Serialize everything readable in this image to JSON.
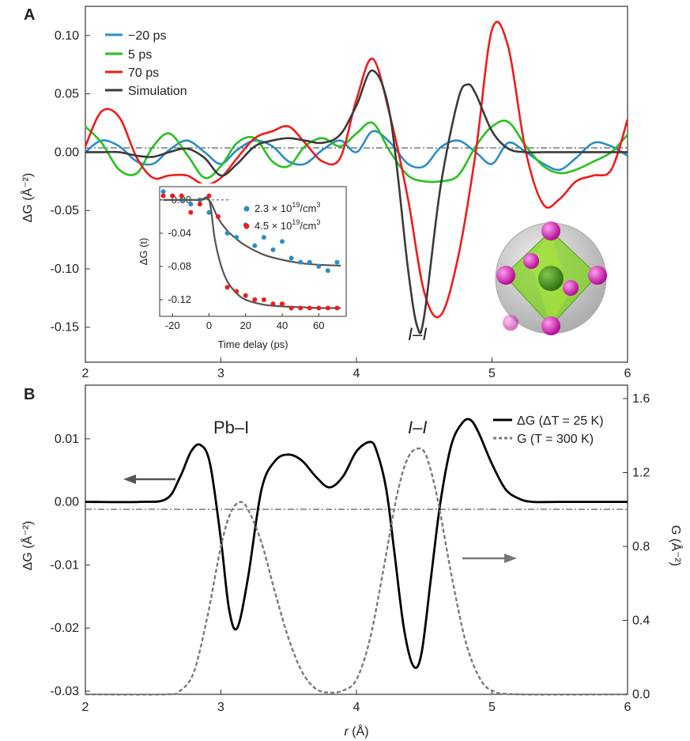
{
  "chart_data": [
    {
      "panel": "A",
      "type": "line",
      "xlabel": "",
      "ylabel": "ΔG (Å⁻²)",
      "xlim": [
        2,
        6
      ],
      "ylim": [
        -0.18,
        0.125
      ],
      "xticks": [
        2,
        3,
        4,
        5,
        6
      ],
      "yticks": [
        -0.15,
        -0.1,
        -0.05,
        0.0,
        0.05,
        0.1
      ],
      "ytick_labels": [
        "-0.15",
        "-0.10",
        "-0.05",
        "0.00",
        "0.05",
        "0.10"
      ],
      "legend_position": "top-left",
      "annotation": "I–I",
      "series": [
        {
          "name": "−20 ps",
          "color": "#2a8dc8",
          "x": [
            2.0,
            2.12,
            2.25,
            2.38,
            2.5,
            2.62,
            2.75,
            2.88,
            3.0,
            3.12,
            3.25,
            3.38,
            3.5,
            3.62,
            3.75,
            3.88,
            4.0,
            4.12,
            4.25,
            4.38,
            4.5,
            4.62,
            4.75,
            4.88,
            5.0,
            5.12,
            5.25,
            5.38,
            5.5,
            5.62,
            5.75,
            5.88,
            6.0
          ],
          "y": [
            0.0,
            0.01,
            0.005,
            -0.008,
            -0.01,
            0.002,
            0.01,
            0.0,
            -0.01,
            0.002,
            0.01,
            0.005,
            -0.008,
            -0.01,
            0.002,
            0.01,
            0.0,
            0.018,
            0.008,
            -0.01,
            -0.012,
            0.004,
            0.01,
            0.0,
            -0.01,
            0.008,
            0.0,
            -0.01,
            -0.015,
            -0.005,
            0.008,
            0.005,
            -0.003
          ]
        },
        {
          "name": "5 ps",
          "color": "#27c21f",
          "x": [
            2.0,
            2.12,
            2.25,
            2.38,
            2.5,
            2.62,
            2.75,
            2.88,
            3.0,
            3.12,
            3.25,
            3.38,
            3.5,
            3.62,
            3.75,
            3.88,
            4.0,
            4.12,
            4.25,
            4.38,
            4.5,
            4.62,
            4.75,
            4.88,
            5.0,
            5.12,
            5.25,
            5.38,
            5.5,
            5.62,
            5.75,
            5.88,
            6.0
          ],
          "y": [
            0.022,
            0.008,
            -0.015,
            -0.018,
            0.005,
            0.016,
            -0.002,
            -0.022,
            -0.012,
            0.008,
            0.012,
            -0.008,
            -0.012,
            0.005,
            0.012,
            0.005,
            0.016,
            0.025,
            0.0,
            -0.02,
            -0.025,
            -0.025,
            -0.02,
            0.005,
            0.022,
            0.026,
            0.005,
            -0.012,
            -0.018,
            -0.015,
            -0.008,
            0.0,
            0.015
          ]
        },
        {
          "name": "70 ps",
          "color": "#ee1c1c",
          "x": [
            2.0,
            2.12,
            2.25,
            2.38,
            2.5,
            2.62,
            2.75,
            2.88,
            3.0,
            3.12,
            3.25,
            3.38,
            3.5,
            3.62,
            3.75,
            3.88,
            4.0,
            4.12,
            4.25,
            4.38,
            4.5,
            4.62,
            4.75,
            4.88,
            5.0,
            5.12,
            5.25,
            5.38,
            5.5,
            5.62,
            5.75,
            5.88,
            6.0
          ],
          "y": [
            0.005,
            0.035,
            0.03,
            -0.005,
            -0.022,
            -0.02,
            -0.02,
            -0.028,
            -0.022,
            -0.005,
            0.012,
            0.018,
            0.022,
            0.008,
            -0.008,
            -0.005,
            0.045,
            0.08,
            0.03,
            -0.04,
            -0.12,
            -0.14,
            -0.09,
            0.0,
            0.105,
            0.09,
            0.0,
            -0.045,
            -0.04,
            -0.025,
            -0.02,
            -0.015,
            0.028
          ]
        },
        {
          "name": "Simulation",
          "color": "#3a3a3a",
          "x": [
            2.0,
            2.12,
            2.25,
            2.38,
            2.5,
            2.62,
            2.75,
            2.88,
            3.0,
            3.12,
            3.25,
            3.38,
            3.5,
            3.62,
            3.75,
            3.88,
            4.0,
            4.12,
            4.25,
            4.38,
            4.45,
            4.5,
            4.62,
            4.75,
            4.82,
            4.88,
            5.0,
            5.12,
            5.25,
            5.38,
            5.5,
            5.62,
            5.75,
            5.88,
            6.0
          ],
          "y": [
            0.0,
            0.0,
            0.0,
            -0.003,
            -0.004,
            0.0,
            0.003,
            -0.005,
            -0.02,
            -0.01,
            0.005,
            0.01,
            0.012,
            0.01,
            0.008,
            0.015,
            0.04,
            0.07,
            0.03,
            -0.1,
            -0.15,
            -0.14,
            -0.03,
            0.045,
            0.058,
            0.05,
            0.018,
            0.003,
            0.0,
            0.0,
            0.0,
            0.0,
            0.0,
            0.0,
            0.0
          ]
        }
      ],
      "inset": {
        "type": "scatter",
        "xlabel": "Time delay (ps)",
        "ylabel": "ΔG (t)",
        "xlim": [
          -27,
          75
        ],
        "ylim": [
          -0.14,
          0.016
        ],
        "xticks": [
          -20,
          0,
          20,
          40,
          60
        ],
        "yticks": [
          0.0,
          -0.04,
          -0.08,
          -0.12
        ],
        "ytick_labels": [
          "0.00",
          "-0.04",
          "-0.08",
          "-0.12"
        ],
        "series": [
          {
            "name_base": "2.3 × 10",
            "name_exp": "19",
            "name_unit": "/cm",
            "name_sup": "3",
            "color": "#2a8dc8",
            "x": [
              -25,
              -20,
              -15,
              -10,
              -5,
              0,
              5,
              10,
              15,
              20,
              25,
              30,
              35,
              40,
              45,
              50,
              55,
              60,
              65,
              70
            ],
            "y": [
              0.01,
              0.005,
              0.0,
              -0.005,
              0.0,
              -0.015,
              -0.02,
              -0.04,
              -0.045,
              -0.03,
              -0.055,
              -0.045,
              -0.06,
              -0.05,
              -0.07,
              -0.075,
              -0.075,
              -0.08,
              -0.085,
              -0.075
            ],
            "fit_x": [
              -25,
              -15,
              -5,
              0,
              5,
              10,
              15,
              20,
              30,
              40,
              50,
              60,
              72
            ],
            "fit_y": [
              0.0,
              0.0,
              0.0,
              0.0,
              -0.022,
              -0.037,
              -0.047,
              -0.055,
              -0.066,
              -0.072,
              -0.076,
              -0.078,
              -0.079
            ]
          },
          {
            "name_base": "4.5 × 10",
            "name_exp": "19",
            "name_unit": "/cm",
            "name_sup": "3",
            "color": "#ee1c1c",
            "x": [
              -25,
              -20,
              -15,
              -10,
              -5,
              0,
              5,
              10,
              15,
              20,
              25,
              30,
              35,
              40,
              45,
              50,
              55,
              60,
              65,
              70
            ],
            "y": [
              0.005,
              0.005,
              0.005,
              -0.015,
              -0.005,
              0.005,
              -0.02,
              -0.105,
              -0.11,
              -0.115,
              -0.12,
              -0.12,
              -0.125,
              -0.125,
              -0.13,
              -0.13,
              -0.13,
              -0.13,
              -0.13,
              -0.13
            ],
            "fit_x": [
              -25,
              -15,
              -5,
              0,
              3,
              6,
              10,
              15,
              20,
              30,
              40,
              50,
              60,
              72
            ],
            "fit_y": [
              0.0,
              0.0,
              0.0,
              0.0,
              -0.045,
              -0.075,
              -0.098,
              -0.112,
              -0.12,
              -0.126,
              -0.128,
              -0.129,
              -0.13,
              -0.13
            ]
          }
        ]
      }
    },
    {
      "panel": "B",
      "type": "line",
      "xlabel_var": "r",
      "xlabel_unit": " (Å)",
      "ylabel": "ΔG (Å⁻²)",
      "y2label": "G (Å⁻²)",
      "xlim": [
        2,
        6
      ],
      "ylim": [
        -0.0305,
        0.0185
      ],
      "y2lim": [
        0.0,
        1.6
      ],
      "xticks": [
        2,
        3,
        4,
        5,
        6
      ],
      "yticks": [
        -0.03,
        -0.02,
        -0.01,
        0.0,
        0.01
      ],
      "ytick_labels": [
        "-0.03",
        "-0.02",
        "-0.01",
        "0.00",
        "0.01"
      ],
      "y2ticks": [
        0.0,
        0.4,
        0.8,
        1.2,
        1.6
      ],
      "y2tick_labels": [
        "0.0",
        "0.4",
        "0.8",
        "1.2",
        "1.6"
      ],
      "legend_position": "top-right",
      "annotations": [
        "Pb–I",
        "I–I"
      ],
      "series": [
        {
          "name": "ΔG (ΔT = 25 K)",
          "color": "#000000",
          "axis": "left",
          "x": [
            2.0,
            2.4,
            2.6,
            2.7,
            2.78,
            2.85,
            2.92,
            3.0,
            3.06,
            3.12,
            3.2,
            3.3,
            3.4,
            3.5,
            3.6,
            3.7,
            3.8,
            3.9,
            4.0,
            4.1,
            4.15,
            4.22,
            4.28,
            4.35,
            4.42,
            4.48,
            4.55,
            4.62,
            4.7,
            4.78,
            4.84,
            4.9,
            5.0,
            5.1,
            5.2,
            5.3,
            5.5,
            6.0
          ],
          "y": [
            0.0,
            0.0,
            0.0005,
            0.004,
            0.008,
            0.009,
            0.006,
            -0.006,
            -0.017,
            -0.02,
            -0.012,
            0.002,
            0.0065,
            0.0075,
            0.0065,
            0.004,
            0.0023,
            0.004,
            0.008,
            0.0095,
            0.008,
            0.002,
            -0.008,
            -0.02,
            -0.026,
            -0.024,
            -0.012,
            0.0,
            0.009,
            0.0125,
            0.013,
            0.011,
            0.006,
            0.002,
            0.0005,
            0.0,
            0.0,
            0.0
          ]
        },
        {
          "name": "G (T = 300 K)",
          "color": "#7a7a7a",
          "axis": "right",
          "dashed": true,
          "x": [
            2.0,
            2.6,
            2.7,
            2.8,
            2.9,
            3.0,
            3.07,
            3.14,
            3.2,
            3.3,
            3.4,
            3.5,
            3.6,
            3.7,
            3.8,
            3.9,
            4.0,
            4.1,
            4.2,
            4.3,
            4.38,
            4.46,
            4.52,
            4.6,
            4.7,
            4.8,
            4.9,
            5.0,
            5.2,
            6.0
          ],
          "y": [
            0.0,
            0.0,
            0.02,
            0.12,
            0.42,
            0.8,
            0.98,
            1.04,
            1.0,
            0.82,
            0.55,
            0.3,
            0.12,
            0.03,
            0.01,
            0.02,
            0.08,
            0.3,
            0.68,
            1.08,
            1.28,
            1.33,
            1.28,
            1.05,
            0.65,
            0.3,
            0.1,
            0.02,
            0.0,
            0.0
          ]
        }
      ],
      "arrows": [
        "left",
        "right"
      ]
    }
  ]
}
